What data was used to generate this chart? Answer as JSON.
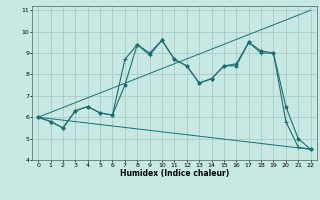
{
  "xlabel": "Humidex (Indice chaleur)",
  "xlim": [
    -0.5,
    22.5
  ],
  "ylim": [
    4,
    11.2
  ],
  "yticks": [
    4,
    5,
    6,
    7,
    8,
    9,
    10,
    11
  ],
  "xticks": [
    0,
    1,
    2,
    3,
    4,
    5,
    6,
    7,
    8,
    9,
    10,
    11,
    12,
    13,
    14,
    15,
    16,
    17,
    18,
    19,
    20,
    21,
    22
  ],
  "bg_color": "#c8e8e4",
  "grid_color": "#a8ccc8",
  "line_color": "#1a7070",
  "line1_x": [
    0,
    1,
    2,
    3,
    4,
    5,
    6,
    7,
    8,
    9,
    10,
    11,
    12,
    13,
    14,
    15,
    16,
    17,
    18,
    19,
    20,
    21,
    22
  ],
  "line1_y": [
    6.0,
    5.8,
    5.5,
    6.3,
    6.5,
    6.2,
    6.1,
    8.7,
    9.4,
    8.9,
    9.6,
    8.7,
    8.4,
    7.6,
    7.8,
    8.4,
    8.5,
    9.5,
    9.0,
    9.0,
    5.8,
    4.6,
    4.5
  ],
  "line2_x": [
    0,
    1,
    2,
    3,
    4,
    5,
    6,
    7,
    8,
    9,
    10,
    11,
    12,
    13,
    14,
    15,
    16,
    17,
    18,
    19,
    20,
    21,
    22
  ],
  "line2_y": [
    6.0,
    5.8,
    5.5,
    6.3,
    6.5,
    6.2,
    6.1,
    7.5,
    9.4,
    9.0,
    9.6,
    8.7,
    8.4,
    7.6,
    7.8,
    8.4,
    8.4,
    9.5,
    9.1,
    9.0,
    6.5,
    5.0,
    4.5
  ],
  "line3_x": [
    0,
    22
  ],
  "line3_y": [
    6.0,
    11.0
  ],
  "line4_x": [
    0,
    22
  ],
  "line4_y": [
    6.0,
    4.5
  ]
}
